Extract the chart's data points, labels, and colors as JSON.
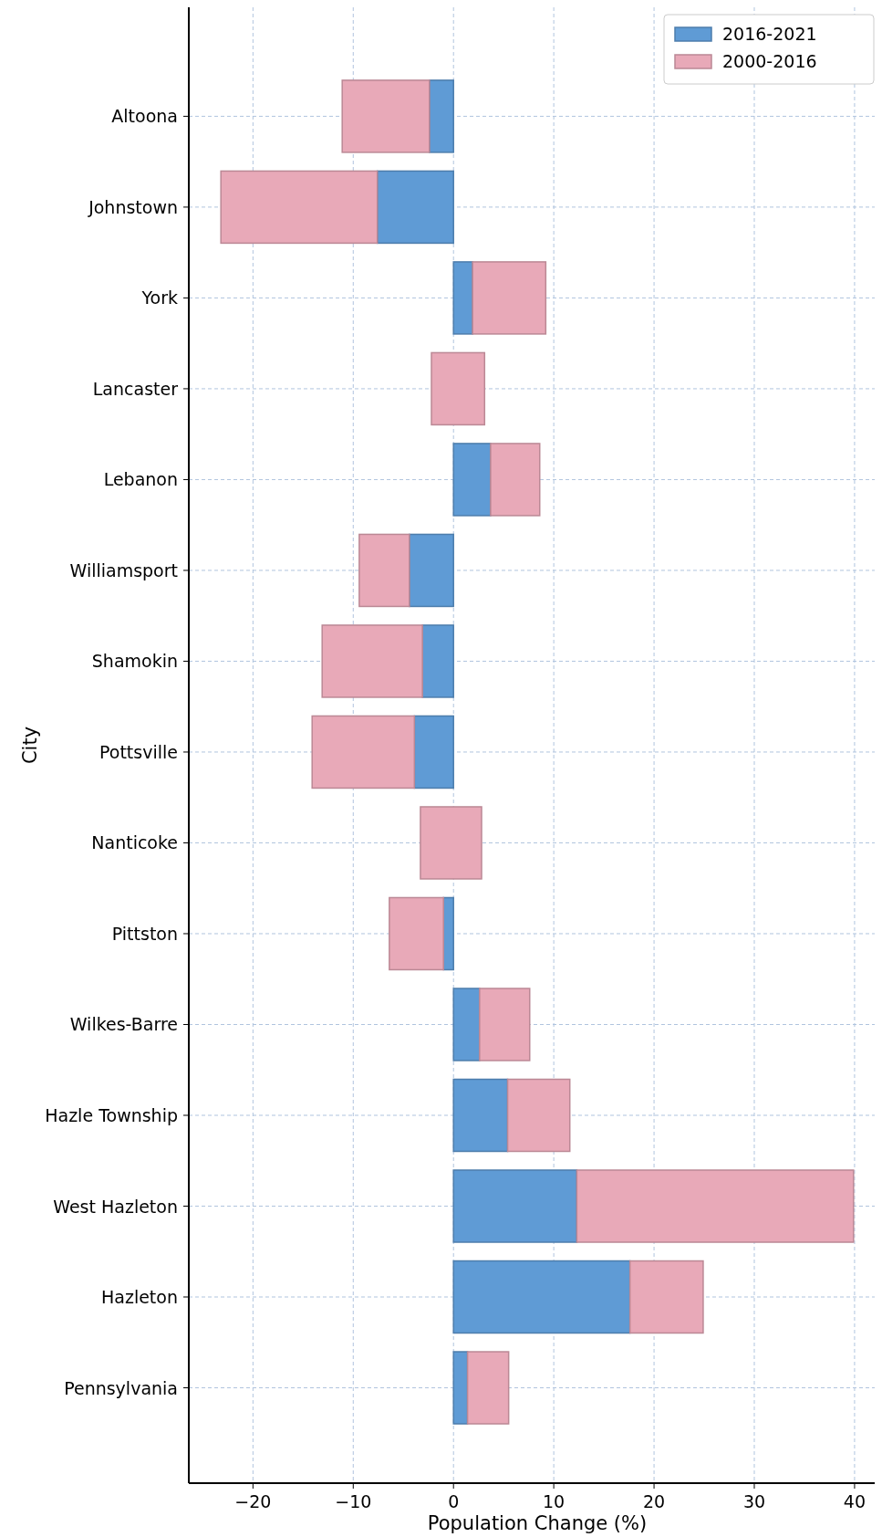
{
  "chart_data": {
    "type": "bar",
    "orientation": "horizontal",
    "stacked": true,
    "categories": [
      "Altoona",
      "Johnstown",
      "York",
      "Lancaster",
      "Lebanon",
      "Williamsport",
      "Shamokin",
      "Pottsville",
      "Nanticoke",
      "Pittston",
      "Wilkes-Barre",
      "Hazle Township",
      "West Hazleton",
      "Hazleton",
      "Pennsylvania"
    ],
    "series": [
      {
        "name": "2016-2021",
        "color": "#5f9bd5",
        "values": [
          -2.4,
          -7.6,
          1.9,
          null,
          3.7,
          -4.4,
          -3.1,
          -3.9,
          null,
          -1.0,
          2.6,
          5.4,
          12.3,
          17.6,
          1.4
        ]
      },
      {
        "name": "2000-2016",
        "color": "#e8a9b8",
        "values": [
          -8.7,
          -15.6,
          7.3,
          5.3,
          4.9,
          -5.0,
          -10.0,
          -10.2,
          6.1,
          -5.4,
          5.0,
          6.2,
          27.6,
          7.3,
          4.1
        ],
        "base": [
          null,
          null,
          null,
          -2.2,
          null,
          null,
          null,
          null,
          -3.3,
          null,
          null,
          null,
          null,
          null,
          null
        ]
      }
    ],
    "xlim": [
      -26.4,
      43.1
    ],
    "xticks": [
      {
        "value": -20,
        "label": "−20"
      },
      {
        "value": -10,
        "label": "−10"
      },
      0,
      10,
      20,
      30,
      40
    ],
    "xlabel": "Population Change (%)",
    "ylabel": "City",
    "grid": true,
    "legend": "top right"
  }
}
